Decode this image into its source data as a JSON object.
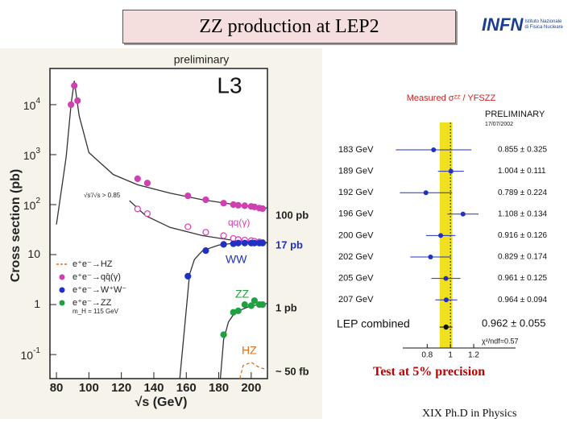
{
  "title": "ZZ production at LEP2",
  "logo": {
    "name": "INFN",
    "line1": "Istituto Nazionale",
    "line2": "di Fisica Nucleare"
  },
  "caption": "Test at 5% precision",
  "footer": "XIX  Ph.D in Physics",
  "chart_data": [
    {
      "type": "line",
      "header": "preliminary",
      "experiment": "L3",
      "x_label": "√s (GeV)",
      "y_label": "Cross section (pb)",
      "log_y": true,
      "xlim": [
        76,
        210
      ],
      "xticks": [
        80,
        100,
        120,
        140,
        160,
        180,
        200
      ],
      "ylim": [
        0.033,
        53000
      ],
      "yticks": [
        {
          "value": 0.1,
          "label": "10",
          "exponent": "-1"
        },
        1,
        10,
        {
          "value": 100,
          "label": "10",
          "exponent": "2"
        },
        {
          "value": 1000,
          "label": "10",
          "exponent": "3"
        },
        {
          "value": 10000,
          "label": "10",
          "exponent": "4"
        }
      ],
      "series": [
        {
          "style": "line",
          "color": "#333333",
          "x": [
            80,
            86,
            89,
            91,
            94,
            100,
            115,
            130,
            150,
            170,
            190,
            210
          ],
          "values": [
            40,
            900,
            10000,
            30000,
            6000,
            1100,
            400,
            250,
            170,
            125,
            100,
            85
          ]
        },
        {
          "style": "line",
          "color": "#333333",
          "x": [
            125,
            135,
            150,
            170,
            190,
            210
          ],
          "values": [
            120,
            60,
            35,
            24,
            19,
            17
          ]
        },
        {
          "style": "line",
          "color": "#333333",
          "x": [
            156,
            160,
            162,
            165,
            170,
            180,
            190,
            200,
            210
          ],
          "values": [
            0.033,
            0.8,
            4,
            8,
            12,
            15.5,
            17,
            17.5,
            17.5
          ]
        },
        {
          "style": "line",
          "color": "#333333",
          "x": [
            181,
            183,
            186,
            190,
            200,
            210
          ],
          "values": [
            0.033,
            0.2,
            0.45,
            0.7,
            0.95,
            1.05
          ]
        },
        {
          "name": "e⁺e⁻→HZ",
          "style": "line",
          "dash": true,
          "color": "#e07020",
          "x": [
            193,
            195,
            200,
            205,
            210
          ],
          "values": [
            0.033,
            0.06,
            0.07,
            0.055,
            0.05
          ]
        },
        {
          "name": "e⁺e⁻→qq̄(γ)",
          "style": "points",
          "color": "#d040b0",
          "x": [
            89,
            91,
            93,
            130,
            136,
            161,
            172,
            183,
            189,
            192,
            196,
            200,
            202,
            205,
            207
          ],
          "values": [
            10000,
            24000,
            12000,
            330,
            270,
            150,
            125,
            107,
            100,
            97,
            95,
            92,
            90,
            85,
            83
          ]
        },
        {
          "style": "points",
          "open": true,
          "color": "#d040b0",
          "x": [
            130,
            136,
            161,
            172,
            183,
            189,
            192,
            196,
            200,
            202,
            205,
            207
          ],
          "values": [
            82,
            66,
            36,
            28,
            24,
            21,
            20,
            19.5,
            19,
            18.5,
            18,
            17.5
          ]
        },
        {
          "name": "e⁺e⁻→W⁺W⁻",
          "style": "points",
          "color": "#2030c0",
          "x": [
            161,
            172,
            183,
            189,
            192,
            196,
            200,
            202,
            205,
            207
          ],
          "values": [
            3.7,
            12,
            16,
            16.5,
            17,
            17,
            17,
            17,
            17,
            17
          ]
        },
        {
          "name": "e⁺e⁻→ZZ",
          "style": "points",
          "color": "#20a040",
          "x": [
            183,
            189,
            192,
            196,
            200,
            202,
            205,
            207
          ],
          "values": [
            0.25,
            0.7,
            0.75,
            1.0,
            0.95,
            1.2,
            1.0,
            1.0
          ]
        }
      ],
      "legend_note": "m_H = 115 GeV",
      "annotations": [
        "100 pb",
        "17 pb",
        "1 pb",
        "~ 50 fb",
        "qq(γ)",
        "WW",
        "ZZ",
        "HZ",
        "√s'/√s > 0.85"
      ]
    },
    {
      "type": "forest",
      "title": "Measured σᶻᶻ / YFSZZ",
      "header": "PRELIMINARY",
      "date": "17/07/2002",
      "categories": [
        "183 GeV",
        "189 GeV",
        "192 GeV",
        "196 GeV",
        "200 GeV",
        "202 GeV",
        "205 GeV",
        "207 GeV"
      ],
      "values": [
        0.855,
        1.004,
        0.789,
        1.108,
        0.916,
        0.829,
        0.961,
        0.964
      ],
      "errors": [
        0.325,
        0.111,
        0.224,
        0.134,
        0.126,
        0.174,
        0.125,
        0.094
      ],
      "value_labels": [
        "0.855 ± 0.325",
        "1.004 ± 0.111",
        "0.789 ± 0.224",
        "1.108 ± 0.134",
        "0.916 ± 0.126",
        "0.829 ± 0.174",
        "0.961 ± 0.125",
        "0.964 ± 0.094"
      ],
      "color": "#2030c0",
      "combined": {
        "label": "LEP combined",
        "value": 0.962,
        "error": 0.055,
        "value_label": "0.962 ± 0.055",
        "chi2": "χ²/ndf=0.57"
      },
      "band_color": "#f0e020",
      "reference_line": 1,
      "xlim": [
        0.59,
        1.56
      ],
      "xticks": [
        0.8,
        1,
        1.2
      ]
    }
  ]
}
